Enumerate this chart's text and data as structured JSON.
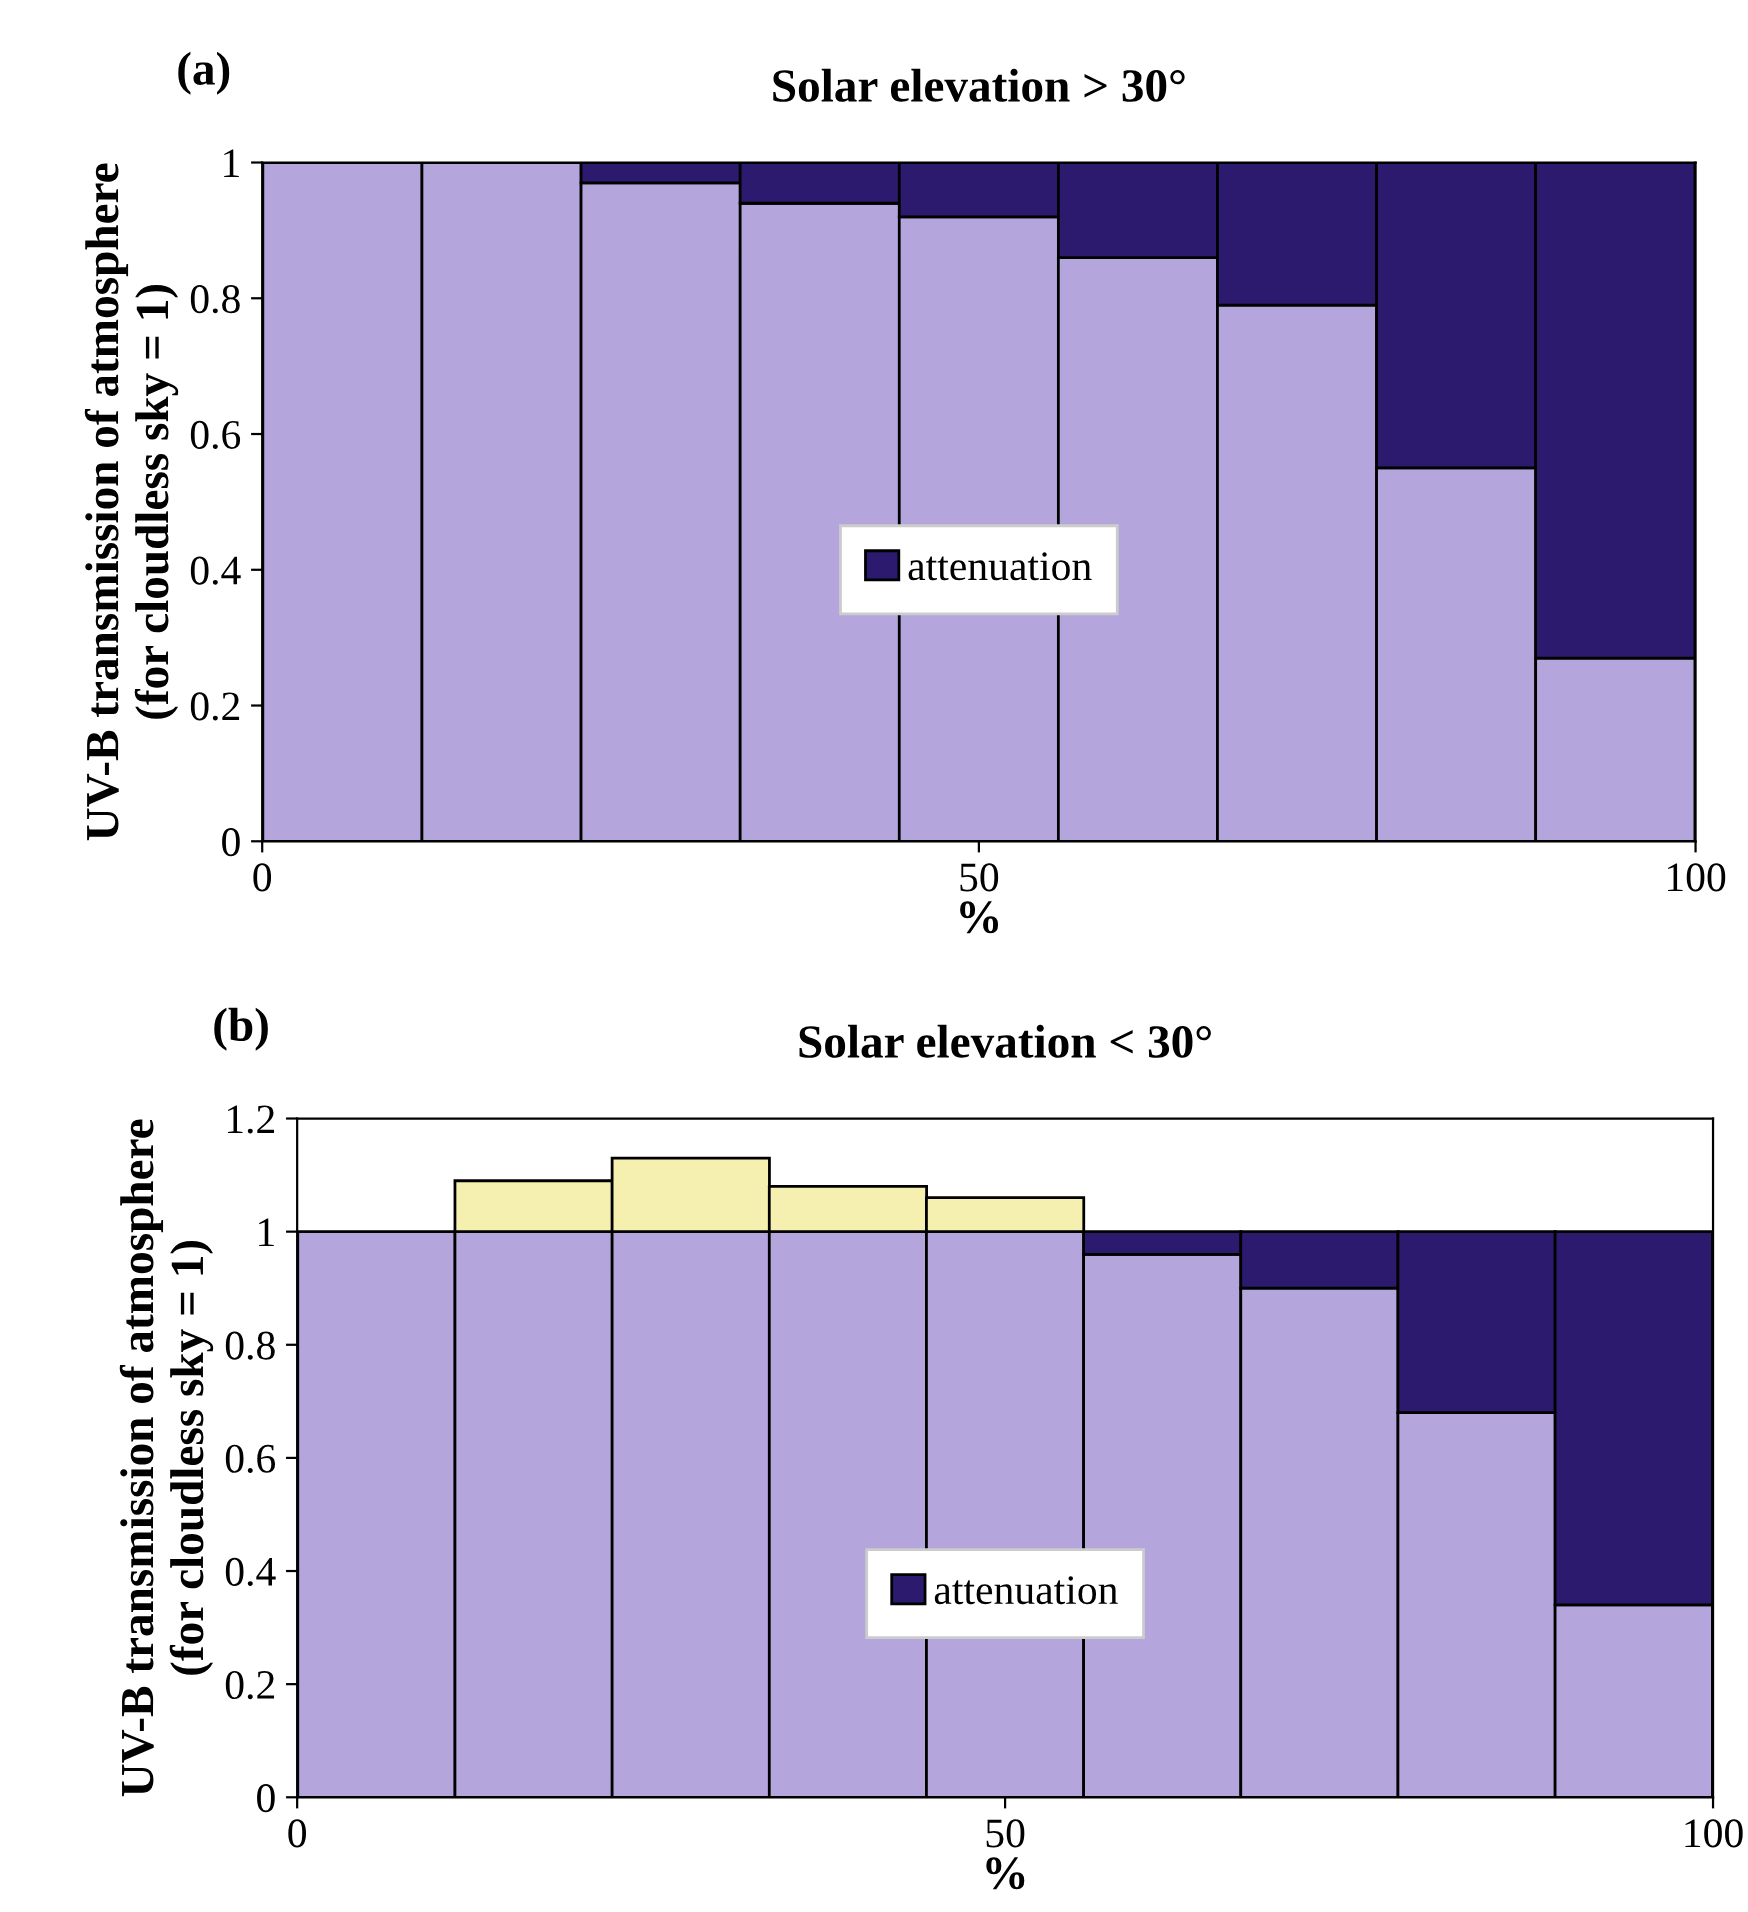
{
  "chart_data": [
    {
      "type": "bar",
      "stacked": true,
      "title": "Solar elevation > 30°",
      "xlabel": "%",
      "ylabel": "UV-B transmission of atmosphere\n(for cloudless sky = 1)",
      "annotations": [
        "(a)"
      ],
      "x": [
        5.6,
        16.7,
        27.8,
        38.9,
        50,
        61.1,
        72.2,
        83.3,
        94.4
      ],
      "xlim": [
        0,
        100
      ],
      "xticks": [
        0,
        50,
        100
      ],
      "ylim": [
        0,
        1
      ],
      "yticks": [
        0,
        0.2,
        0.4,
        0.6,
        0.8,
        1
      ],
      "legend": "center",
      "grid": false,
      "series": [
        {
          "color": "#b4a6dc",
          "values": [
            1,
            1,
            0.97,
            0.94,
            0.92,
            0.86,
            0.79,
            0.55,
            0.27
          ]
        },
        {
          "name": "attenuation",
          "color": "#2b1a6e",
          "values": [
            null,
            null,
            0.03,
            0.06,
            0.08,
            0.14,
            0.21,
            0.45,
            0.73
          ]
        }
      ]
    },
    {
      "type": "bar",
      "stacked": true,
      "title": "Solar elevation < 30°",
      "xlabel": "%",
      "ylabel": "UV-B transmission of atmosphere\n(for cloudless sky = 1)",
      "annotations": [
        "(b)"
      ],
      "x": [
        5.6,
        16.7,
        27.8,
        38.9,
        50,
        61.1,
        72.2,
        83.3,
        94.4
      ],
      "xlim": [
        0,
        100
      ],
      "xticks": [
        0,
        50,
        100
      ],
      "ylim": [
        0,
        1.2
      ],
      "yticks": [
        0,
        0.2,
        0.4,
        0.6,
        0.8,
        1,
        1.2
      ],
      "legend": "lower center",
      "grid": false,
      "series": [
        {
          "color": "#b4a6dc",
          "values": [
            1,
            1,
            1,
            1,
            1,
            0.96,
            0.9,
            0.68,
            0.34
          ]
        },
        {
          "name": "attenuation",
          "color": "#2b1a6e",
          "values": [
            null,
            null,
            null,
            null,
            null,
            0.04,
            0.1,
            0.32,
            0.66
          ]
        },
        {
          "color": "#f5f0b0",
          "values": [
            null,
            0.09,
            0.13,
            0.08,
            0.06,
            null,
            null,
            null,
            null
          ]
        }
      ]
    }
  ]
}
